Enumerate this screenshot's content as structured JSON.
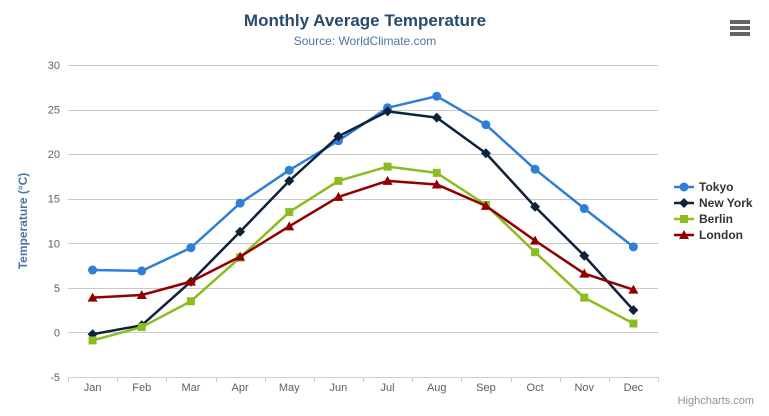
{
  "chart_data": {
    "type": "line",
    "title": "Monthly Average Temperature",
    "subtitle": "Source: WorldClimate.com",
    "xlabel": "",
    "ylabel": "Temperature (°C)",
    "ylim": [
      -5,
      30
    ],
    "yticks": [
      30,
      25,
      20,
      15,
      10,
      5,
      0,
      -5
    ],
    "grid": true,
    "legend_position": "right-middle",
    "categories": [
      "Jan",
      "Feb",
      "Mar",
      "Apr",
      "May",
      "Jun",
      "Jul",
      "Aug",
      "Sep",
      "Oct",
      "Nov",
      "Dec"
    ],
    "series": [
      {
        "name": "Tokyo",
        "color": "#2f7ed8",
        "marker": "circle",
        "values": [
          7.0,
          6.9,
          9.5,
          14.5,
          18.2,
          21.5,
          25.2,
          26.5,
          23.3,
          18.3,
          13.9,
          9.6
        ]
      },
      {
        "name": "New York",
        "color": "#0d233a",
        "marker": "diamond",
        "values": [
          -0.2,
          0.8,
          5.7,
          11.3,
          17.0,
          22.0,
          24.8,
          24.1,
          20.1,
          14.1,
          8.6,
          2.5
        ]
      },
      {
        "name": "Berlin",
        "color": "#8bbc21",
        "marker": "square",
        "values": [
          -0.9,
          0.6,
          3.5,
          8.4,
          13.5,
          17.0,
          18.6,
          17.9,
          14.3,
          9.0,
          3.9,
          1.0
        ]
      },
      {
        "name": "London",
        "color": "#910000",
        "marker": "triangle",
        "values": [
          3.9,
          4.2,
          5.7,
          8.5,
          11.9,
          15.2,
          17.0,
          16.6,
          14.2,
          10.3,
          6.6,
          4.8
        ]
      }
    ]
  },
  "credits": "Highcharts.com",
  "theme_colors": {
    "title": "#274b6d",
    "subtitle": "#4d759e",
    "axis_title": "#4d759e",
    "axis_label": "#606060",
    "axis_line": "#c0d0e0",
    "gridline": "#c8c8c8",
    "legend_text": "#333333",
    "credits_text": "#909090",
    "menu_icon": "#666666"
  }
}
